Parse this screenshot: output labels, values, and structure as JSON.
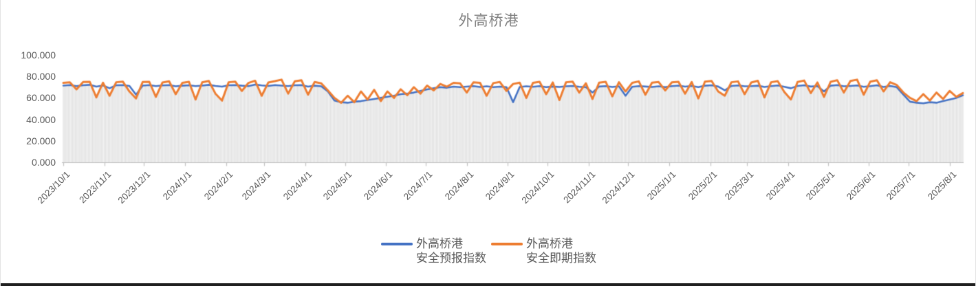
{
  "title": "外高桥港",
  "colors": {
    "forecast_line": "#4472C4",
    "spot_line": "#ED7D31",
    "background_columns": "#E0E0E0",
    "axis": "#BFBFBF",
    "tick_text": "#595959",
    "title_text": "#7F7F7F",
    "window_edge": "#1F1F1F"
  },
  "chart_data": {
    "type": "line",
    "title": "外高桥港",
    "y_axis": {
      "min": 0,
      "max": 100,
      "tick_step": 20,
      "tick_labels": [
        "0.000",
        "20.000",
        "40.000",
        "60.000",
        "80.000",
        "100.000"
      ]
    },
    "x_axis": {
      "tick_labels": [
        "2023/10/1",
        "2023/11/1",
        "2023/12/1",
        "2024/1/1",
        "2024/2/1",
        "2024/3/1",
        "2024/4/1",
        "2024/5/1",
        "2024/6/1",
        "2024/7/1",
        "2024/8/1",
        "2024/9/1",
        "2024/10/1",
        "2024/11/1",
        "2024/12/1",
        "2025/1/1",
        "2025/2/1",
        "2025/3/1",
        "2025/4/1",
        "2025/5/1",
        "2025/6/1",
        "2025/7/1",
        "2025/8/1"
      ],
      "label_rotation_deg": 45,
      "span_days": 680
    },
    "sample_step_days": 5,
    "grid": "off",
    "legend_position": "bottom-center",
    "background_columns": {
      "color": "#E0E0E0",
      "height": "min_of_series"
    },
    "series": [
      {
        "name": "外高桥港安全预报指数",
        "legend_lines": [
          "外高桥港",
          "安全预报指数"
        ],
        "color": "#4472C4",
        "line_width": 2.6,
        "values": [
          71.5,
          72,
          71,
          71.8,
          72.2,
          70.5,
          71.6,
          69,
          71.8,
          72,
          71.2,
          63,
          71.5,
          72,
          71,
          71.6,
          72,
          70.8,
          71.4,
          71.8,
          71,
          71.5,
          72.2,
          71.2,
          70.5,
          71.8,
          72,
          71.4,
          71,
          72.5,
          71.6,
          71.2,
          72,
          71.5,
          71,
          71.8,
          72,
          70.5,
          71.4,
          70.8,
          66,
          57.5,
          56,
          55.5,
          56.5,
          57,
          58,
          59,
          60,
          61,
          62,
          63.5,
          64,
          65,
          66.5,
          68,
          69,
          70,
          69.5,
          70.5,
          70,
          70.5,
          71,
          70.2,
          70.8,
          70,
          70.5,
          70,
          56,
          70.2,
          70.8,
          70.4,
          71,
          70,
          70.6,
          70.2,
          70.8,
          71.2,
          70.4,
          70,
          65,
          70.6,
          71,
          70.2,
          70.8,
          62,
          70.4,
          71,
          70.6,
          70.2,
          70.8,
          70,
          71,
          71.5,
          70.5,
          71.2,
          70,
          71.4,
          71.8,
          70.6,
          67,
          71.2,
          71.6,
          70.8,
          71,
          71.4,
          70.2,
          71,
          71.6,
          70.4,
          69,
          71.2,
          71.8,
          70.6,
          71,
          66,
          71.4,
          72,
          70.8,
          71.2,
          71.6,
          70.4,
          71,
          71.8,
          70.2,
          71.2,
          70,
          63,
          56.5,
          55.5,
          55,
          56,
          55.5,
          57,
          58.5,
          60,
          62.5
        ]
      },
      {
        "name": "外高桥港安全即期指数",
        "legend_lines": [
          "外高桥港",
          "安全即期指数"
        ],
        "color": "#ED7D31",
        "line_width": 3,
        "values": [
          74,
          74.5,
          68,
          74.8,
          75,
          60.5,
          74.2,
          62,
          74.6,
          75.2,
          66,
          59.5,
          74.8,
          75,
          61,
          74.4,
          75.5,
          63.5,
          74,
          75,
          58.5,
          74.5,
          75.8,
          64,
          57.5,
          74.6,
          75.2,
          66.5,
          74,
          76,
          62,
          74.4,
          75.6,
          77,
          64,
          75.5,
          76.5,
          63,
          74.8,
          73.5,
          67,
          60,
          55.5,
          62,
          56,
          66,
          58.5,
          67.5,
          57,
          66,
          60,
          68,
          62.5,
          70,
          64,
          71.5,
          67,
          73,
          70.5,
          74,
          73.5,
          65,
          74.5,
          74,
          62,
          73.8,
          74.8,
          66.5,
          73,
          74.2,
          60,
          74,
          75,
          63.5,
          74.4,
          58,
          74.6,
          75.2,
          65,
          73.6,
          59,
          74.2,
          75,
          61.5,
          74.6,
          66,
          74,
          75.4,
          63,
          74.2,
          74.8,
          67,
          74.5,
          75,
          64,
          74.8,
          59.5,
          75.2,
          75.8,
          66,
          62,
          74.6,
          75.4,
          63.5,
          74.4,
          76,
          60.5,
          74.6,
          75.6,
          65.5,
          58.5,
          74.8,
          76.2,
          64.5,
          74.4,
          61,
          75,
          76.5,
          65,
          75.8,
          77,
          63,
          75.2,
          76.4,
          66,
          74.6,
          72,
          65,
          60,
          57,
          63.5,
          57.5,
          65,
          59,
          66.5,
          61,
          64.5
        ]
      }
    ]
  }
}
